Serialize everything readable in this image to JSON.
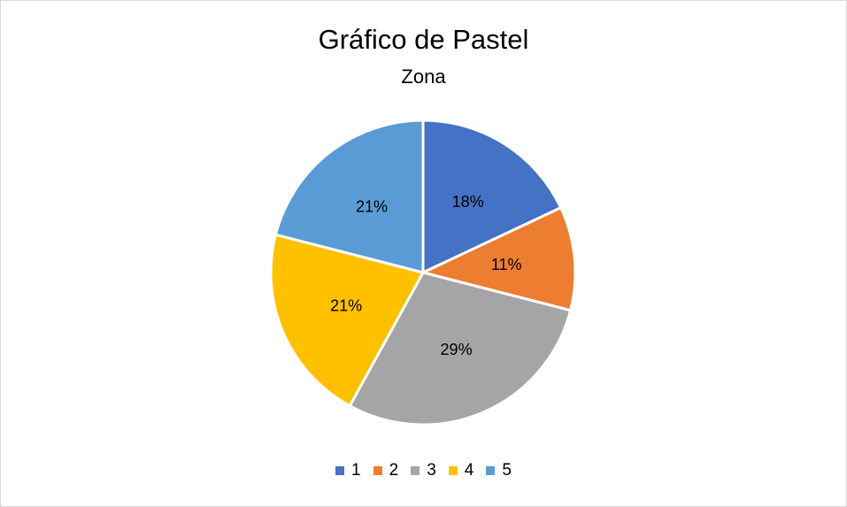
{
  "chart_data": {
    "type": "pie",
    "title": "Gráfico de Pastel",
    "subtitle": "Zona",
    "categories": [
      "1",
      "2",
      "3",
      "4",
      "5"
    ],
    "values": [
      18,
      11,
      29,
      21,
      21
    ],
    "labels": [
      "18%",
      "11%",
      "29%",
      "21%",
      "21%"
    ],
    "colors": [
      "#4472C4",
      "#ED7D31",
      "#A5A5A5",
      "#FFC000",
      "#5B9BD5"
    ],
    "legend_position": "bottom",
    "start_angle": "12 o'clock, clockwise"
  }
}
